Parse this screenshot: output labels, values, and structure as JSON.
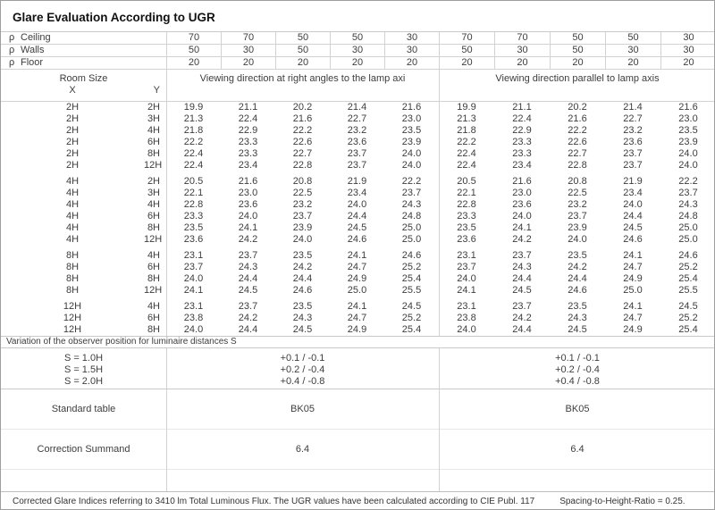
{
  "title": "Glare Evaluation According to UGR",
  "rho_rows": [
    {
      "symbol": "ρ",
      "label": "Ceiling",
      "values": [
        "70",
        "70",
        "50",
        "50",
        "30",
        "70",
        "70",
        "50",
        "50",
        "30"
      ]
    },
    {
      "symbol": "ρ",
      "label": "Walls",
      "values": [
        "50",
        "30",
        "50",
        "30",
        "30",
        "50",
        "30",
        "50",
        "30",
        "30"
      ]
    },
    {
      "symbol": "ρ",
      "label": "Floor",
      "values": [
        "20",
        "20",
        "20",
        "20",
        "20",
        "20",
        "20",
        "20",
        "20",
        "20"
      ]
    }
  ],
  "header": {
    "room_size": "Room Size",
    "x": "X",
    "y": "Y",
    "section1": "Viewing direction at right angles to the lamp axi",
    "section2": "Viewing direction parallel to lamp axis"
  },
  "blocks": [
    {
      "rows": [
        {
          "x": "2H",
          "y": "2H",
          "left": [
            "19.9",
            "21.1",
            "20.2",
            "21.4",
            "21.6"
          ],
          "right": [
            "19.9",
            "21.1",
            "20.2",
            "21.4",
            "21.6"
          ]
        },
        {
          "x": "2H",
          "y": "3H",
          "left": [
            "21.3",
            "22.4",
            "21.6",
            "22.7",
            "23.0"
          ],
          "right": [
            "21.3",
            "22.4",
            "21.6",
            "22.7",
            "23.0"
          ]
        },
        {
          "x": "2H",
          "y": "4H",
          "left": [
            "21.8",
            "22.9",
            "22.2",
            "23.2",
            "23.5"
          ],
          "right": [
            "21.8",
            "22.9",
            "22.2",
            "23.2",
            "23.5"
          ]
        },
        {
          "x": "2H",
          "y": "6H",
          "left": [
            "22.2",
            "23.3",
            "22.6",
            "23.6",
            "23.9"
          ],
          "right": [
            "22.2",
            "23.3",
            "22.6",
            "23.6",
            "23.9"
          ]
        },
        {
          "x": "2H",
          "y": "8H",
          "left": [
            "22.4",
            "23.3",
            "22.7",
            "23.7",
            "24.0"
          ],
          "right": [
            "22.4",
            "23.3",
            "22.7",
            "23.7",
            "24.0"
          ]
        },
        {
          "x": "2H",
          "y": "12H",
          "left": [
            "22.4",
            "23.4",
            "22.8",
            "23.7",
            "24.0"
          ],
          "right": [
            "22.4",
            "23.4",
            "22.8",
            "23.7",
            "24.0"
          ]
        }
      ]
    },
    {
      "rows": [
        {
          "x": "4H",
          "y": "2H",
          "left": [
            "20.5",
            "21.6",
            "20.8",
            "21.9",
            "22.2"
          ],
          "right": [
            "20.5",
            "21.6",
            "20.8",
            "21.9",
            "22.2"
          ]
        },
        {
          "x": "4H",
          "y": "3H",
          "left": [
            "22.1",
            "23.0",
            "22.5",
            "23.4",
            "23.7"
          ],
          "right": [
            "22.1",
            "23.0",
            "22.5",
            "23.4",
            "23.7"
          ]
        },
        {
          "x": "4H",
          "y": "4H",
          "left": [
            "22.8",
            "23.6",
            "23.2",
            "24.0",
            "24.3"
          ],
          "right": [
            "22.8",
            "23.6",
            "23.2",
            "24.0",
            "24.3"
          ]
        },
        {
          "x": "4H",
          "y": "6H",
          "left": [
            "23.3",
            "24.0",
            "23.7",
            "24.4",
            "24.8"
          ],
          "right": [
            "23.3",
            "24.0",
            "23.7",
            "24.4",
            "24.8"
          ]
        },
        {
          "x": "4H",
          "y": "8H",
          "left": [
            "23.5",
            "24.1",
            "23.9",
            "24.5",
            "25.0"
          ],
          "right": [
            "23.5",
            "24.1",
            "23.9",
            "24.5",
            "25.0"
          ]
        },
        {
          "x": "4H",
          "y": "12H",
          "left": [
            "23.6",
            "24.2",
            "24.0",
            "24.6",
            "25.0"
          ],
          "right": [
            "23.6",
            "24.2",
            "24.0",
            "24.6",
            "25.0"
          ]
        }
      ]
    },
    {
      "rows": [
        {
          "x": "8H",
          "y": "4H",
          "left": [
            "23.1",
            "23.7",
            "23.5",
            "24.1",
            "24.6"
          ],
          "right": [
            "23.1",
            "23.7",
            "23.5",
            "24.1",
            "24.6"
          ]
        },
        {
          "x": "8H",
          "y": "6H",
          "left": [
            "23.7",
            "24.3",
            "24.2",
            "24.7",
            "25.2"
          ],
          "right": [
            "23.7",
            "24.3",
            "24.2",
            "24.7",
            "25.2"
          ]
        },
        {
          "x": "8H",
          "y": "8H",
          "left": [
            "24.0",
            "24.4",
            "24.4",
            "24.9",
            "25.4"
          ],
          "right": [
            "24.0",
            "24.4",
            "24.4",
            "24.9",
            "25.4"
          ]
        },
        {
          "x": "8H",
          "y": "12H",
          "left": [
            "24.1",
            "24.5",
            "24.6",
            "25.0",
            "25.5"
          ],
          "right": [
            "24.1",
            "24.5",
            "24.6",
            "25.0",
            "25.5"
          ]
        }
      ]
    },
    {
      "rows": [
        {
          "x": "12H",
          "y": "4H",
          "left": [
            "23.1",
            "23.7",
            "23.5",
            "24.1",
            "24.5"
          ],
          "right": [
            "23.1",
            "23.7",
            "23.5",
            "24.1",
            "24.5"
          ]
        },
        {
          "x": "12H",
          "y": "6H",
          "left": [
            "23.8",
            "24.2",
            "24.3",
            "24.7",
            "25.2"
          ],
          "right": [
            "23.8",
            "24.2",
            "24.3",
            "24.7",
            "25.2"
          ]
        },
        {
          "x": "12H",
          "y": "8H",
          "left": [
            "24.0",
            "24.4",
            "24.5",
            "24.9",
            "25.4"
          ],
          "right": [
            "24.0",
            "24.4",
            "24.5",
            "24.9",
            "25.4"
          ]
        }
      ]
    }
  ],
  "variation": {
    "label": "Variation of the observer position for luminaire distances S",
    "rows": [
      {
        "label": "S = 1.0H",
        "value1": "+0.1 / -0.1",
        "value2": "+0.1 / -0.1"
      },
      {
        "label": "S = 1.5H",
        "value1": "+0.2 / -0.4",
        "value2": "+0.2 / -0.4"
      },
      {
        "label": "S = 2.0H",
        "value1": "+0.4 / -0.8",
        "value2": "+0.4 / -0.8"
      }
    ]
  },
  "standard_table": {
    "label": "Standard table",
    "value1": "BK05",
    "value2": "BK05"
  },
  "correction": {
    "label": "Correction Summand",
    "value1": "6.4",
    "value2": "6.4"
  },
  "footer": {
    "text": "Corrected Glare Indices referring to 3410 lm Total Luminous Flux. The UGR values have been calculated according to CIE Publ. 117",
    "ratio": "Spacing-to-Height-Ratio = 0.25."
  },
  "colors": {
    "grid_line": "#d2d2d2",
    "section_line": "#c9c9c9",
    "outer_border": "#9e9e9e",
    "text": "#3d3d3d"
  }
}
